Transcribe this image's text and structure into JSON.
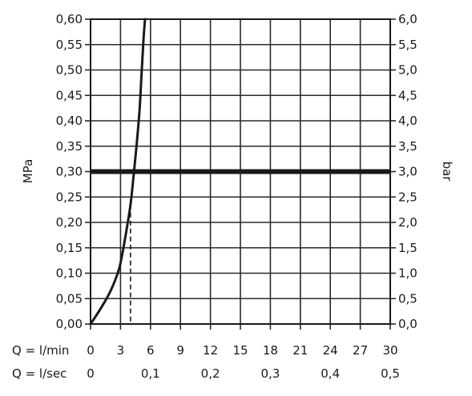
{
  "chart_data": {
    "type": "line",
    "ylabel_left": "MPa",
    "ylabel_right": "bar",
    "xlim": [
      0,
      30
    ],
    "ylim": [
      0,
      0.6
    ],
    "grid": true,
    "x_row_labels": [
      "Q = l/min",
      "Q = l/sec"
    ],
    "x_ticks_lmin": [
      "0",
      "3",
      "6",
      "9",
      "12",
      "15",
      "18",
      "21",
      "24",
      "27",
      "30"
    ],
    "x_ticks_lsec": [
      {
        "x": 0,
        "label": "0"
      },
      {
        "x": 6,
        "label": "0,1"
      },
      {
        "x": 12,
        "label": "0,2"
      },
      {
        "x": 18,
        "label": "0,3"
      },
      {
        "x": 24,
        "label": "0,4"
      },
      {
        "x": 30,
        "label": "0,5"
      }
    ],
    "y_ticks_left": [
      "0,00",
      "0,05",
      "0,10",
      "0,15",
      "0,20",
      "0,25",
      "0,30",
      "0,35",
      "0,40",
      "0,45",
      "0,50",
      "0,55",
      "0,60"
    ],
    "y_ticks_right": [
      "0,0",
      "0,5",
      "1,0",
      "1,5",
      "2,0",
      "2,5",
      "3,0",
      "3,5",
      "4,0",
      "4,5",
      "5,0",
      "5,5",
      "6,0"
    ],
    "series": [
      {
        "points": [
          [
            0,
            0.0
          ],
          [
            1.0,
            0.03
          ],
          [
            2.0,
            0.065
          ],
          [
            2.8,
            0.105
          ],
          [
            3.2,
            0.14
          ],
          [
            3.6,
            0.185
          ],
          [
            4.0,
            0.235
          ],
          [
            4.3,
            0.29
          ],
          [
            4.6,
            0.35
          ],
          [
            4.9,
            0.42
          ],
          [
            5.1,
            0.49
          ],
          [
            5.3,
            0.56
          ],
          [
            5.45,
            0.6
          ]
        ]
      }
    ],
    "reference_line": {
      "y": 0.3
    },
    "marker": {
      "x": 4.0,
      "y_top": 0.235
    }
  }
}
